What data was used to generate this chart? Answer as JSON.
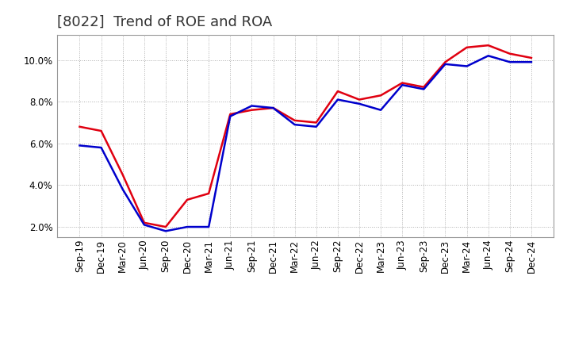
{
  "title": "[8022]  Trend of ROE and ROA",
  "labels": [
    "Sep-19",
    "Dec-19",
    "Mar-20",
    "Jun-20",
    "Sep-20",
    "Dec-20",
    "Mar-21",
    "Jun-21",
    "Sep-21",
    "Dec-21",
    "Mar-22",
    "Jun-22",
    "Sep-22",
    "Dec-22",
    "Mar-23",
    "Jun-23",
    "Sep-23",
    "Dec-23",
    "Mar-24",
    "Jun-24",
    "Sep-24",
    "Dec-24"
  ],
  "roe": [
    6.8,
    6.6,
    4.5,
    2.2,
    2.0,
    3.3,
    3.6,
    7.4,
    7.6,
    7.7,
    7.1,
    7.0,
    8.5,
    8.1,
    8.3,
    8.9,
    8.7,
    9.9,
    10.6,
    10.7,
    10.3,
    10.1
  ],
  "roa": [
    5.9,
    5.8,
    3.8,
    2.1,
    1.8,
    2.0,
    2.0,
    7.3,
    7.8,
    7.7,
    6.9,
    6.8,
    8.1,
    7.9,
    7.6,
    8.8,
    8.6,
    9.8,
    9.7,
    10.2,
    9.9,
    9.9
  ],
  "roe_color": "#e00010",
  "roa_color": "#0000cc",
  "background_color": "#ffffff",
  "plot_bg_color": "#ffffff",
  "grid_color": "#999999",
  "title_fontsize": 13,
  "legend_fontsize": 10,
  "tick_fontsize": 8.5,
  "ylim": [
    1.5,
    11.2
  ],
  "yticks": [
    2.0,
    4.0,
    6.0,
    8.0,
    10.0
  ],
  "line_width": 1.8
}
